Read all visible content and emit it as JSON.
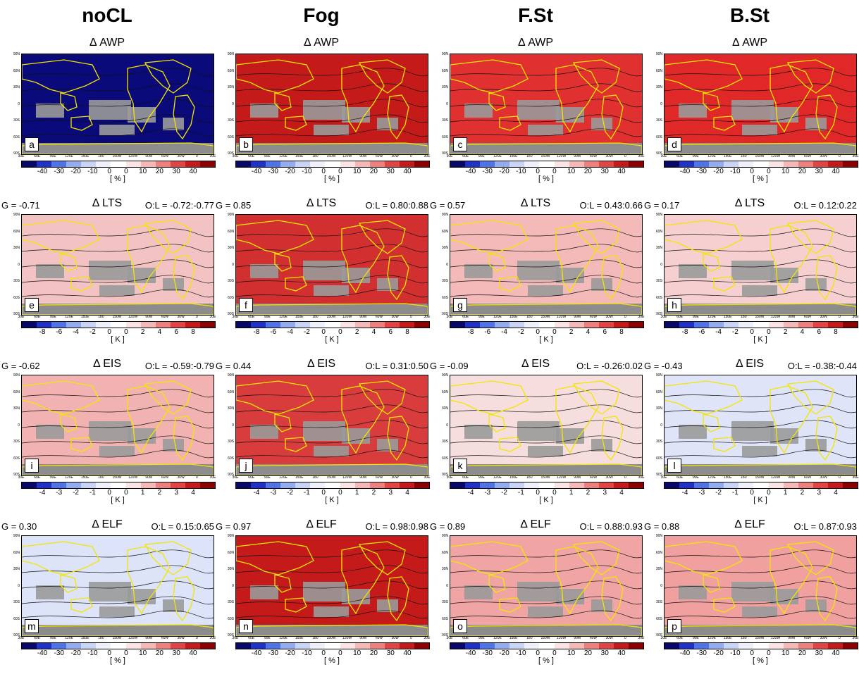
{
  "columns": [
    "noCL",
    "Fog",
    "F.St",
    "B.St"
  ],
  "lat_labels": [
    "90N",
    "60N",
    "30N",
    "0",
    "30S",
    "60S",
    "90S"
  ],
  "lon_labels": [
    "30E",
    "60E",
    "90E",
    "120E",
    "150E",
    "180",
    "150W",
    "120W",
    "90W",
    "60W",
    "30W",
    "0",
    "30E"
  ],
  "colormap": [
    "#08086b",
    "#1f31c6",
    "#4f74e8",
    "#93acf0",
    "#c8d4f6",
    "#eef1fb",
    "#ffffff",
    "#fbe3e3",
    "#f6b7b7",
    "#ef7f7f",
    "#e24444",
    "#c41a1a",
    "#8b0000"
  ],
  "rows": [
    {
      "variable": "Δ AWP",
      "unit": "[ % ]",
      "ticks": [
        "-40",
        "-30",
        "-20",
        "-10",
        "0",
        "0",
        "10",
        "20",
        "30",
        "40"
      ],
      "panels": [
        {
          "letter": "a",
          "g": "",
          "ol": "",
          "fill": "#0a0a7a"
        },
        {
          "letter": "b",
          "g": "",
          "ol": "",
          "fill": "#c41a1a"
        },
        {
          "letter": "c",
          "g": "",
          "ol": "",
          "fill": "#e03030"
        },
        {
          "letter": "d",
          "g": "",
          "ol": "",
          "fill": "#e02828"
        }
      ]
    },
    {
      "variable": "Δ LTS",
      "unit": "[ K ]",
      "ticks": [
        "-8",
        "-6",
        "-4",
        "-2",
        "0",
        "0",
        "2",
        "4",
        "6",
        "8"
      ],
      "panels": [
        {
          "letter": "e",
          "g": "G = -0.71",
          "ol": "O:L = -0.72:-0.77",
          "fill": "#f3c2c2"
        },
        {
          "letter": "f",
          "g": "G = 0.85",
          "ol": "O:L = 0.80:0.88",
          "fill": "#d23030"
        },
        {
          "letter": "g",
          "g": "G = 0.57",
          "ol": "O:L = 0.43:0.66",
          "fill": "#f4b9b9"
        },
        {
          "letter": "h",
          "g": "G = 0.17",
          "ol": "O:L = 0.12:0.22",
          "fill": "#f6d0d0"
        }
      ]
    },
    {
      "variable": "Δ EIS",
      "unit": "[ K ]",
      "ticks": [
        "-4",
        "-3",
        "-2",
        "-1",
        "0",
        "0",
        "1",
        "2",
        "3",
        "4"
      ],
      "panels": [
        {
          "letter": "i",
          "g": "G = -0.62",
          "ol": "O:L = -0.59:-0.79",
          "fill": "#f2b2b2"
        },
        {
          "letter": "j",
          "g": "G = 0.44",
          "ol": "O:L = 0.31:0.50",
          "fill": "#d83c3c"
        },
        {
          "letter": "k",
          "g": "G = -0.09",
          "ol": "O:L = -0.26:0.02",
          "fill": "#f7dede"
        },
        {
          "letter": "l",
          "g": "G = -0.43",
          "ol": "O:L = -0.38:-0.44",
          "fill": "#dfe4f8"
        }
      ]
    },
    {
      "variable": "Δ ELF",
      "unit": "[ % ]",
      "ticks": [
        "-40",
        "-30",
        "-20",
        "-10",
        "0",
        "0",
        "10",
        "20",
        "30",
        "40"
      ],
      "panels": [
        {
          "letter": "m",
          "g": "G = 0.30",
          "ol": "O:L = 0.15:0.65",
          "fill": "#dde3f8"
        },
        {
          "letter": "n",
          "g": "G = 0.97",
          "ol": "O:L = 0.98:0.98",
          "fill": "#c41a1a"
        },
        {
          "letter": "o",
          "g": "G = 0.89",
          "ol": "O:L = 0.88:0.93",
          "fill": "#f1a4a4"
        },
        {
          "letter": "p",
          "g": "G = 0.88",
          "ol": "O:L = 0.87:0.93",
          "fill": "#f1a0a0"
        }
      ]
    }
  ],
  "chart_data": {
    "type": "heatmap",
    "description_type": "map",
    "grid": {
      "rows": 4,
      "cols": 4
    },
    "colorbars": [
      {
        "row": 0,
        "range": [
          -40,
          40
        ]
      },
      {
        "row": 1,
        "range": [
          -8,
          8
        ]
      },
      {
        "row": 2,
        "range": [
          -4,
          4
        ]
      },
      {
        "row": 3,
        "range": [
          -40,
          40
        ]
      }
    ]
  }
}
